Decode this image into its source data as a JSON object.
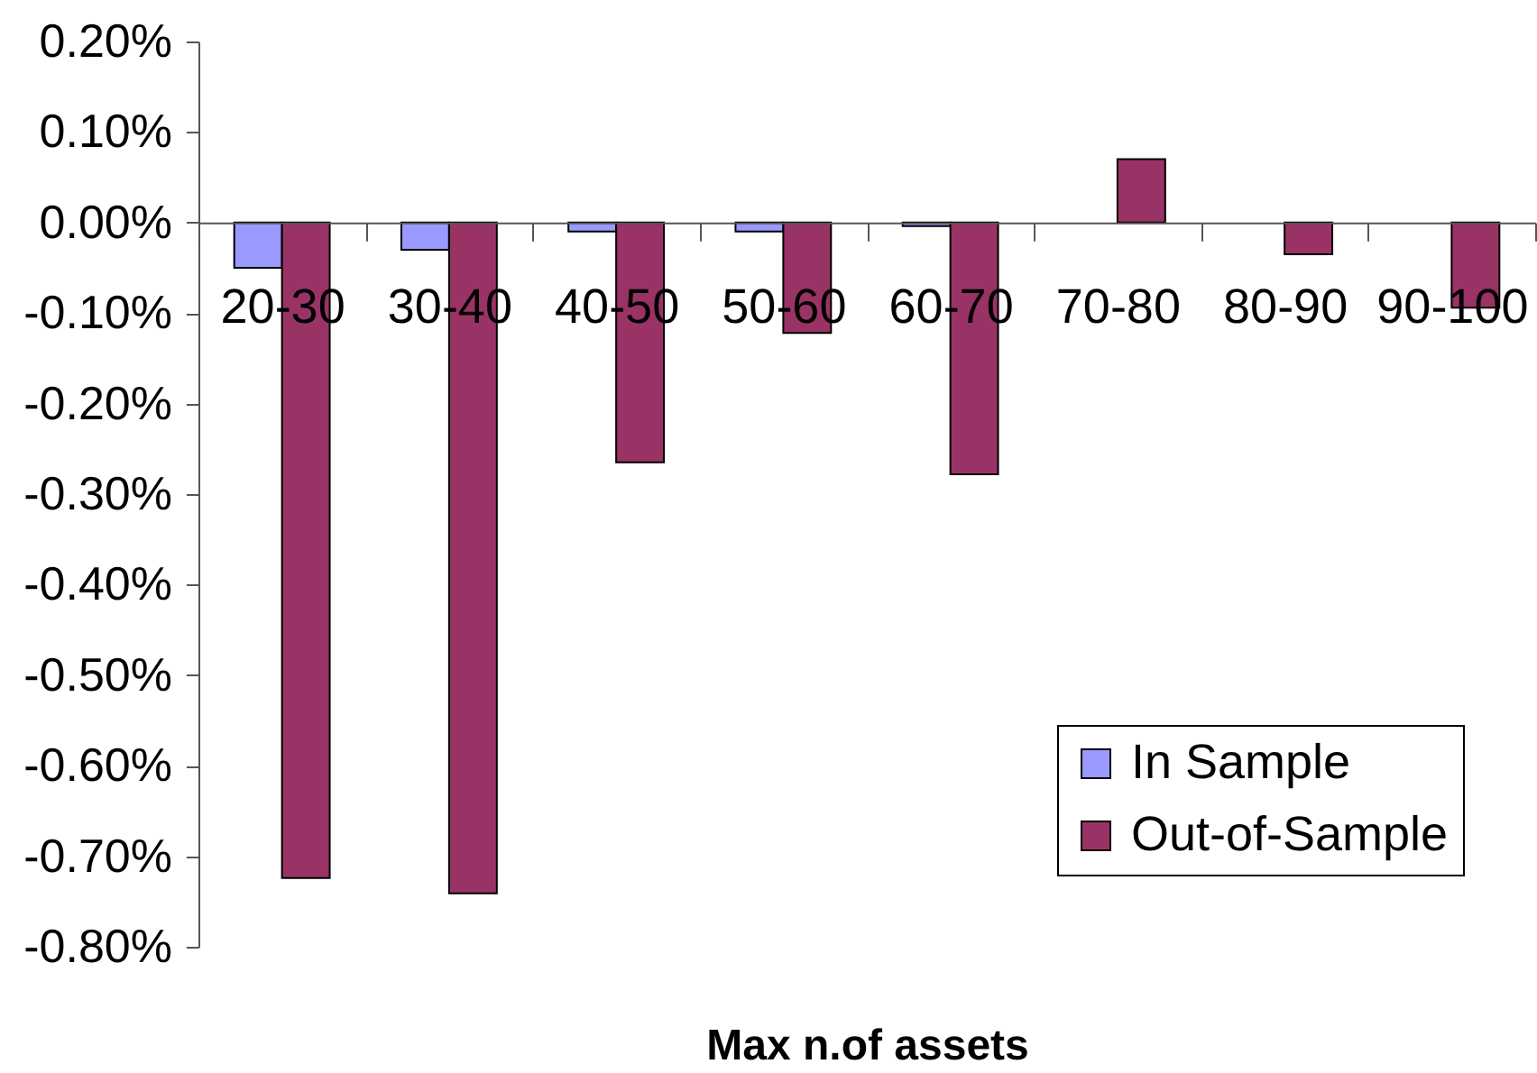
{
  "chart_data": {
    "type": "bar",
    "xlabel": "Max n.of assets",
    "categories": [
      "20-30",
      "30-40",
      "40-50",
      "50-60",
      "60-70",
      "70-80",
      "80-90",
      "90-100"
    ],
    "series": [
      {
        "name": "In Sample",
        "color": "#9999ff",
        "values": [
          -0.05,
          -0.03,
          -0.01,
          -0.01,
          -0.004,
          null,
          null,
          null
        ]
      },
      {
        "name": "Out-of-Sample",
        "color": "#993366",
        "values": [
          -0.724,
          -0.741,
          -0.265,
          -0.122,
          -0.278,
          0.07,
          -0.035,
          -0.094
        ]
      }
    ],
    "ylim": [
      -0.8,
      0.2
    ],
    "yticks": [
      {
        "value": 0.2,
        "label": "0.20%"
      },
      {
        "value": 0.1,
        "label": "0.10%"
      },
      {
        "value": 0,
        "label": "0.00%"
      },
      {
        "value": -0.1,
        "label": "-0.10%"
      },
      {
        "value": -0.2,
        "label": "-0.20%"
      },
      {
        "value": -0.3,
        "label": "-0.30%"
      },
      {
        "value": -0.4,
        "label": "-0.40%"
      },
      {
        "value": -0.5,
        "label": "-0.50%"
      },
      {
        "value": -0.6,
        "label": "-0.60%"
      },
      {
        "value": -0.7,
        "label": "-0.70%"
      },
      {
        "value": -0.8,
        "label": "-0.80%"
      }
    ],
    "grid": false,
    "legend": "bottom right"
  }
}
